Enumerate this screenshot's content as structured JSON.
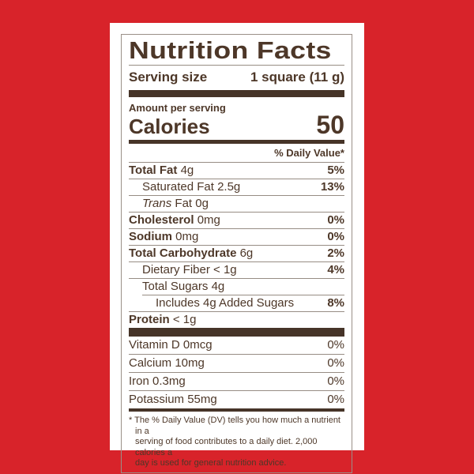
{
  "colors": {
    "background": "#d8232a",
    "label_background": "#ffffff",
    "text_brown": "#4d3728",
    "bar_brown": "#463428",
    "rule_gray": "#978d84"
  },
  "label": {
    "title": "Nutrition Facts",
    "serving_size_label": "Serving size",
    "serving_size_value": "1 square (11 g)",
    "amount_per_serving": "Amount per serving",
    "calories_label": "Calories",
    "calories_value": "50",
    "daily_value_header": "% Daily Value*",
    "nutrients": [
      {
        "name": "Total Fat",
        "amount": "4g",
        "dv": "5%"
      },
      {
        "name": "Saturated Fat",
        "amount": "2.5g",
        "dv": "13%"
      },
      {
        "name_italic": "Trans",
        "name_rest": "Fat",
        "amount": "0g",
        "dv": ""
      },
      {
        "name": "Cholesterol",
        "amount": "0mg",
        "dv": "0%"
      },
      {
        "name": "Sodium",
        "amount": "0mg",
        "dv": "0%"
      },
      {
        "name": "Total Carbohydrate",
        "amount": "6g",
        "dv": "2%"
      },
      {
        "name": "Dietary Fiber",
        "amount": "< 1g",
        "dv": "4%"
      },
      {
        "name": "Total Sugars",
        "amount": "4g",
        "dv": ""
      },
      {
        "name": "Includes 4g Added Sugars",
        "amount": "",
        "dv": "8%"
      },
      {
        "name": "Protein",
        "amount": "< 1g",
        "dv": ""
      }
    ],
    "vitamins": [
      {
        "name": "Vitamin D 0mcg",
        "dv": "0%"
      },
      {
        "name": "Calcium 10mg",
        "dv": "0%"
      },
      {
        "name": "Iron 0.3mg",
        "dv": "0%"
      },
      {
        "name": "Potassium 55mg",
        "dv": "0%"
      }
    ],
    "footnote": {
      "marker": "*",
      "lines": [
        "The % Daily Value (DV) tells you how much a nutrient in a",
        "serving of food contributes to a daily diet. 2,000 calories a",
        "day is used for general nutrition advice."
      ]
    }
  }
}
